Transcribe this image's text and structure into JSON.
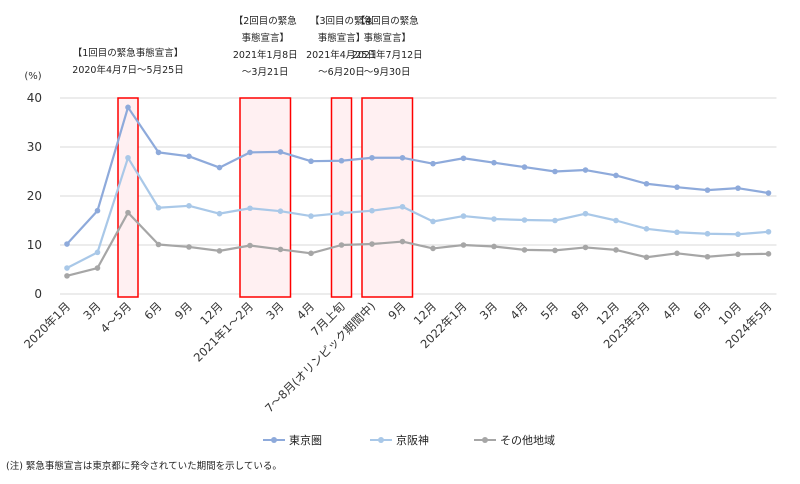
{
  "chart_data": {
    "type": "line",
    "ylabel": "(%)",
    "ylim": [
      0,
      40
    ],
    "yticks": [
      0,
      10,
      20,
      30,
      40
    ],
    "grid": true,
    "legend_position": "bottom",
    "categories": [
      "2020年1月",
      "3月",
      "4～5月",
      "6月",
      "9月",
      "12月",
      "2021年1～2月",
      "3月",
      "4月",
      "7月上旬",
      "7～8月(オリンピック期間中)",
      "9月",
      "12月",
      "2022年1月",
      "3月",
      "4月",
      "5月",
      "8月",
      "12月",
      "2023年3月",
      "4月",
      "6月",
      "10月",
      "2024年5月"
    ],
    "series": [
      {
        "name": "東京圏",
        "color": "#8eaadb",
        "values": [
          10.2,
          17.0,
          38.1,
          28.9,
          28.1,
          25.8,
          28.9,
          29.0,
          27.1,
          27.2,
          27.8,
          27.8,
          26.6,
          27.7,
          26.8,
          25.9,
          25.0,
          25.3,
          24.2,
          22.5,
          21.8,
          21.2,
          21.6,
          20.6
        ]
      },
      {
        "name": "京阪神",
        "color": "#a9c8e8",
        "values": [
          5.3,
          8.5,
          27.8,
          17.6,
          18.0,
          16.4,
          17.5,
          16.9,
          15.9,
          16.5,
          17.0,
          17.8,
          14.8,
          15.9,
          15.3,
          15.1,
          15.0,
          16.4,
          15.0,
          13.3,
          12.6,
          12.3,
          12.2,
          12.7
        ]
      },
      {
        "name": "その他地域",
        "color": "#a6a6a6",
        "values": [
          3.7,
          5.3,
          16.6,
          10.1,
          9.6,
          8.8,
          9.9,
          9.1,
          8.3,
          10.0,
          10.2,
          10.7,
          9.3,
          10.0,
          9.7,
          9.0,
          8.9,
          9.5,
          9.0,
          7.5,
          8.3,
          7.6,
          8.1,
          8.2
        ]
      }
    ],
    "annotations": [
      {
        "lines": [
          "【1回目の緊急事態宣言】",
          "2020年4月7日～5月25日"
        ],
        "from": "4～5月",
        "to": "4～5月"
      },
      {
        "lines": [
          "【2回目の緊急",
          "事態宣言】",
          "2021年1月8日",
          "～3月21日"
        ],
        "from": "2021年1～2月",
        "to": "3月"
      },
      {
        "lines": [
          "【3回目の緊急",
          "事態宣言】",
          "2021年4月25日",
          "～6月20日"
        ],
        "from": "7月上旬",
        "to": "7月上旬"
      },
      {
        "lines": [
          "【4回目の緊急",
          "事態宣言】",
          "2021年7月12日",
          "～9月30日"
        ],
        "from": "7～8月(オリンピック期間中)",
        "to": "9月"
      }
    ],
    "highlight_color": "#ff0000"
  },
  "footnote": "(注) 緊急事態宣言は東京都に発令されていた期間を示している。"
}
